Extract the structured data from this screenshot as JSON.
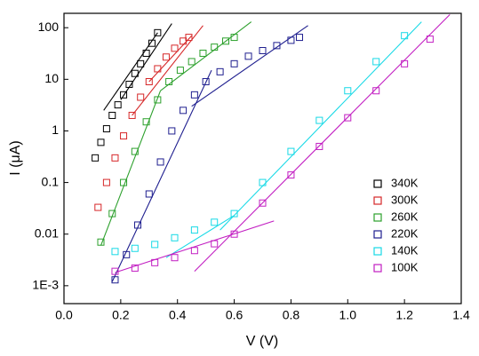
{
  "chart_data": {
    "type": "scatter",
    "x_label": "V (V)",
    "y_label": "I (μA)",
    "log_y": true,
    "xlim": [
      0,
      1.4
    ],
    "ylim": [
      0.00045,
      190
    ],
    "xticks": [
      {
        "value": 0,
        "label": "0.0"
      },
      0.2,
      0.4,
      0.6,
      0.8,
      {
        "value": 1,
        "label": "1.0"
      },
      1.2,
      1.4
    ],
    "yticks": [
      {
        "value": 0.001,
        "label": "1E-3"
      },
      0.01,
      0.1,
      1,
      10,
      100
    ],
    "legend": "lower right",
    "series": [
      {
        "name": "340K",
        "color": "#000000",
        "x": [
          0.11,
          0.13,
          0.15,
          0.17,
          0.19,
          0.21,
          0.23,
          0.25,
          0.27,
          0.29,
          0.31,
          0.33
        ],
        "values": [
          0.3,
          0.6,
          1.1,
          2,
          3.2,
          5,
          8,
          13,
          20,
          32,
          50,
          80
        ],
        "fits": [
          {
            "x": [
              0.14,
              0.33
            ],
            "y": [
              2.5,
              80
            ]
          },
          {
            "x": [
              0.2,
              0.38
            ],
            "y": [
              4,
              120
            ]
          }
        ]
      },
      {
        "name": "300K",
        "color": "#d62728",
        "x": [
          0.12,
          0.15,
          0.18,
          0.21,
          0.24,
          0.27,
          0.3,
          0.33,
          0.36,
          0.39,
          0.42,
          0.44
        ],
        "values": [
          0.033,
          0.1,
          0.3,
          0.8,
          2,
          4.5,
          9,
          16,
          27,
          40,
          55,
          65
        ],
        "fits": [
          {
            "x": [
              0.24,
              0.49
            ],
            "y": [
              2,
              110
            ]
          },
          {
            "x": [
              0.3,
              0.45
            ],
            "y": [
              9,
              70
            ]
          }
        ]
      },
      {
        "name": "260K",
        "color": "#2ca02c",
        "x": [
          0.13,
          0.17,
          0.21,
          0.25,
          0.29,
          0.33,
          0.37,
          0.41,
          0.45,
          0.49,
          0.53,
          0.57,
          0.6
        ],
        "values": [
          0.007,
          0.025,
          0.1,
          0.4,
          1.5,
          4,
          9,
          15,
          22,
          32,
          42,
          55,
          65
        ],
        "fits": [
          {
            "x": [
              0.13,
              0.34
            ],
            "y": [
              0.006,
              6
            ]
          },
          {
            "x": [
              0.34,
              0.66
            ],
            "y": [
              6,
              130
            ]
          }
        ]
      },
      {
        "name": "220K",
        "color": "#1f1f8f",
        "x": [
          0.18,
          0.22,
          0.26,
          0.3,
          0.34,
          0.38,
          0.42,
          0.46,
          0.5,
          0.55,
          0.6,
          0.65,
          0.7,
          0.75,
          0.8,
          0.83
        ],
        "values": [
          0.0013,
          0.004,
          0.015,
          0.06,
          0.25,
          1,
          2.5,
          5,
          9,
          14,
          20,
          28,
          36,
          45,
          57,
          65
        ],
        "fits": [
          {
            "x": [
              0.17,
              0.52
            ],
            "y": [
              0.0012,
              15
            ]
          },
          {
            "x": [
              0.45,
              0.86
            ],
            "y": [
              3,
              110
            ]
          }
        ]
      },
      {
        "name": "140K",
        "color": "#17d9e6",
        "x": [
          0.18,
          0.25,
          0.32,
          0.39,
          0.46,
          0.53,
          0.6,
          0.7,
          0.8,
          0.9,
          1.0,
          1.1,
          1.2
        ],
        "values": [
          0.0046,
          0.0053,
          0.0063,
          0.0085,
          0.012,
          0.017,
          0.025,
          0.1,
          0.4,
          1.6,
          6,
          22,
          70
        ],
        "fits": [
          {
            "x": [
              0.36,
              0.6
            ],
            "y": [
              0.0035,
              0.023
            ]
          },
          {
            "x": [
              0.55,
              1.26
            ],
            "y": [
              0.012,
              130
            ]
          }
        ]
      },
      {
        "name": "100K",
        "color": "#c21fc2",
        "x": [
          0.18,
          0.25,
          0.32,
          0.39,
          0.46,
          0.53,
          0.6,
          0.7,
          0.8,
          0.9,
          1.0,
          1.1,
          1.2,
          1.29
        ],
        "values": [
          0.0019,
          0.0022,
          0.0028,
          0.0035,
          0.0048,
          0.0065,
          0.01,
          0.04,
          0.14,
          0.5,
          1.8,
          6,
          20,
          60
        ],
        "fits": [
          {
            "x": [
              0.18,
              0.74
            ],
            "y": [
              0.0018,
              0.018
            ]
          },
          {
            "x": [
              0.46,
              1.36
            ],
            "y": [
              0.0019,
              180
            ]
          }
        ]
      }
    ]
  }
}
